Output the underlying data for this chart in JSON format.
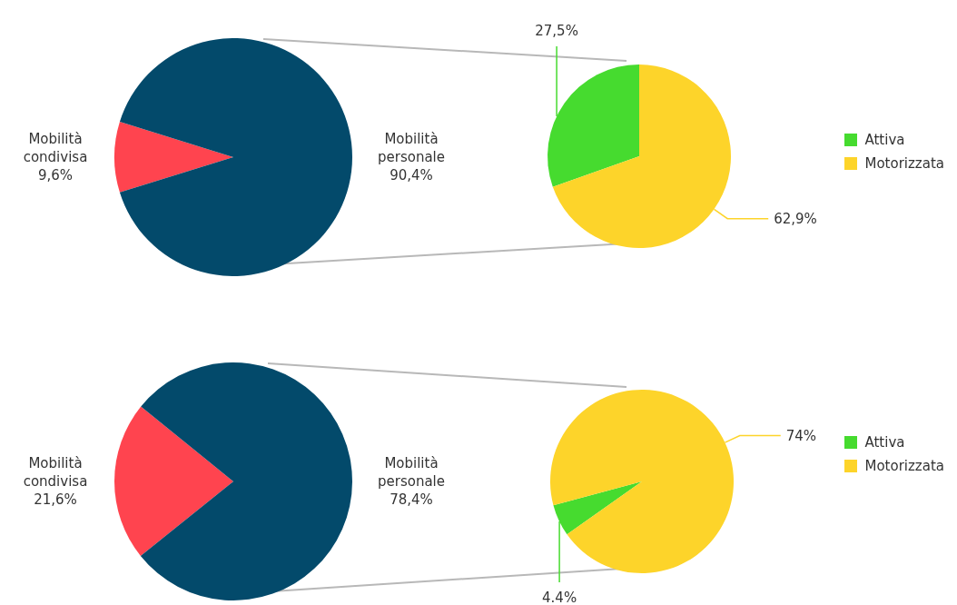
{
  "chart_data": [
    {
      "type": "pie",
      "categories": [
        "Mobilità condivisa",
        "Mobilità personale"
      ],
      "values": [
        9.6,
        90.4
      ],
      "colors": [
        "#ff444f",
        "#034a6b"
      ],
      "value_labels": [
        "9,6%",
        "90,4%"
      ]
    },
    {
      "type": "pie",
      "categories": [
        "Attiva",
        "Motorizzata"
      ],
      "values": [
        27.5,
        62.9
      ],
      "colors": [
        "#46db2f",
        "#fdd42a"
      ],
      "value_labels": [
        "27,5%",
        "62,9%"
      ],
      "legend": "right"
    },
    {
      "type": "pie",
      "categories": [
        "Mobilità condivisa",
        "Mobilità personale"
      ],
      "values": [
        21.6,
        78.4
      ],
      "colors": [
        "#ff444f",
        "#034a6b"
      ],
      "value_labels": [
        "21,6%",
        "78,4%"
      ]
    },
    {
      "type": "pie",
      "categories": [
        "Attiva",
        "Motorizzata"
      ],
      "values": [
        4.4,
        74
      ],
      "colors": [
        "#46db2f",
        "#fdd42a"
      ],
      "value_labels": [
        "4.4%",
        "74%"
      ],
      "legend": "right"
    }
  ]
}
